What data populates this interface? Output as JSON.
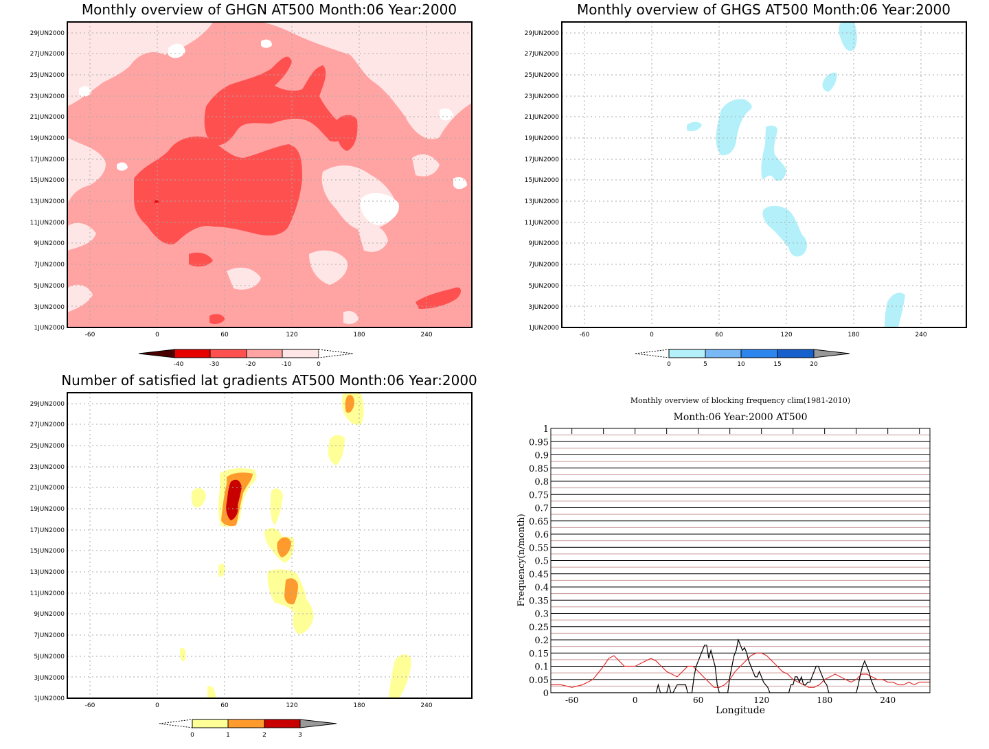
{
  "panels": [
    {
      "title": "Monthly overview of GHGN AT500 Month:06 Year:2000",
      "colorbar_labels": [
        "-40",
        "-30",
        "-20",
        "-10",
        "0"
      ],
      "colorbar_colors": [
        "#4a0000",
        "#e60000",
        "#ff5050",
        "#ffa3a3",
        "#ffe6e6"
      ]
    },
    {
      "title": "Monthly overview of GHGS AT500 Month:06 Year:2000",
      "colorbar_labels": [
        "0",
        "5",
        "10",
        "15",
        "20"
      ],
      "colorbar_colors": [
        "#b4f0fa",
        "#78b8f5",
        "#2c86ee",
        "#1560cc"
      ]
    },
    {
      "title": "Number of satisfied lat gradients AT500 Month:06 Year:2000",
      "colorbar_labels": [
        "0",
        "1",
        "2",
        "3"
      ],
      "colorbar_colors": [
        "#ffff98",
        "#ff9a2c",
        "#c80000"
      ]
    }
  ],
  "map_axes": {
    "x_ticks": [
      "-60",
      "0",
      "60",
      "120",
      "180",
      "240"
    ],
    "y_ticks": [
      "1JUN2000",
      "3JUN2000",
      "5JUN2000",
      "7JUN2000",
      "9JUN2000",
      "11JUN2000",
      "13JUN2000",
      "15JUN2000",
      "17JUN2000",
      "19JUN2000",
      "21JUN2000",
      "23JUN2000",
      "25JUN2000",
      "27JUN2000",
      "29JUN2000"
    ]
  },
  "chart_data": [
    {
      "type": "heatmap",
      "title": "Monthly overview of GHGN AT500 Month:06 Year:2000",
      "x_ticks": [
        -60,
        0,
        60,
        120,
        180,
        240
      ],
      "xlim": [
        -80,
        280
      ],
      "y_ticks": [
        "1JUN2000",
        "3JUN2000",
        "5JUN2000",
        "7JUN2000",
        "9JUN2000",
        "11JUN2000",
        "13JUN2000",
        "15JUN2000",
        "17JUN2000",
        "19JUN2000",
        "21JUN2000",
        "23JUN2000",
        "25JUN2000",
        "27JUN2000",
        "29JUN2000"
      ],
      "levels": [
        -40,
        -30,
        -20,
        -10,
        0
      ],
      "grid": true
    },
    {
      "type": "heatmap",
      "title": "Monthly overview of GHGS AT500 Month:06 Year:2000",
      "x_ticks": [
        -60,
        0,
        60,
        120,
        180,
        240
      ],
      "xlim": [
        -80,
        280
      ],
      "y_ticks": [
        "1JUN2000",
        "3JUN2000",
        "5JUN2000",
        "7JUN2000",
        "9JUN2000",
        "11JUN2000",
        "13JUN2000",
        "15JUN2000",
        "17JUN2000",
        "19JUN2000",
        "21JUN2000",
        "23JUN2000",
        "25JUN2000",
        "27JUN2000",
        "29JUN2000"
      ],
      "levels": [
        0,
        5,
        10,
        15,
        20
      ],
      "grid": true
    },
    {
      "type": "heatmap",
      "title": "Number of satisfied lat gradients AT500 Month:06 Year:2000",
      "x_ticks": [
        -60,
        0,
        60,
        120,
        180,
        240
      ],
      "xlim": [
        -80,
        280
      ],
      "y_ticks": [
        "1JUN2000",
        "3JUN2000",
        "5JUN2000",
        "7JUN2000",
        "9JUN2000",
        "11JUN2000",
        "13JUN2000",
        "15JUN2000",
        "17JUN2000",
        "19JUN2000",
        "21JUN2000",
        "23JUN2000",
        "25JUN2000",
        "27JUN2000",
        "29JUN2000"
      ],
      "levels": [
        0,
        1,
        2,
        3
      ],
      "grid": true
    },
    {
      "type": "line",
      "title": "Monthly overview of blocking frequency clim(1981-2010)",
      "subtitle": "Month:06 Year:2000  AT500",
      "xlabel": "Longitude",
      "ylabel": "Frequency(n/month)",
      "xlim": [
        -80,
        280
      ],
      "ylim": [
        0,
        1
      ],
      "x_ticks": [
        -60,
        0,
        60,
        120,
        180,
        240
      ],
      "y_ticks": [
        "0",
        "0.05",
        "0.1",
        "0.15",
        "0.2",
        "0.25",
        "0.3",
        "0.35",
        "0.4",
        "0.45",
        "0.5",
        "0.55",
        "0.6",
        "0.65",
        "0.7",
        "0.75",
        "0.8",
        "0.85",
        "0.9",
        "0.95",
        "1"
      ],
      "series": [
        {
          "color": "#e03030",
          "x": [
            -80,
            -70,
            -60,
            -50,
            -40,
            -30,
            -25,
            -20,
            -15,
            -10,
            -5,
            0,
            5,
            10,
            15,
            20,
            25,
            30,
            35,
            40,
            45,
            50,
            55,
            60,
            65,
            70,
            75,
            80,
            85,
            90,
            95,
            100,
            105,
            110,
            115,
            120,
            125,
            130,
            135,
            140,
            145,
            150,
            155,
            160,
            165,
            170,
            175,
            180,
            185,
            190,
            195,
            200,
            205,
            210,
            215,
            220,
            225,
            230,
            235,
            240,
            245,
            250,
            255,
            260,
            265,
            270,
            275,
            280
          ],
          "values": [
            0.03,
            0.03,
            0.02,
            0.03,
            0.05,
            0.1,
            0.13,
            0.14,
            0.12,
            0.1,
            0.1,
            0.1,
            0.11,
            0.12,
            0.13,
            0.12,
            0.1,
            0.08,
            0.07,
            0.06,
            0.08,
            0.1,
            0.1,
            0.08,
            0.06,
            0.04,
            0.02,
            0.02,
            0.03,
            0.05,
            0.08,
            0.1,
            0.12,
            0.14,
            0.15,
            0.15,
            0.14,
            0.12,
            0.1,
            0.08,
            0.07,
            0.05,
            0.04,
            0.03,
            0.02,
            0.02,
            0.03,
            0.05,
            0.06,
            0.07,
            0.06,
            0.05,
            0.04,
            0.05,
            0.07,
            0.07,
            0.06,
            0.05,
            0.05,
            0.04,
            0.04,
            0.03,
            0.03,
            0.04,
            0.03,
            0.04,
            0.04,
            0.04
          ]
        },
        {
          "color": "#000000",
          "x": [
            -80,
            20,
            22,
            24,
            26,
            30,
            32,
            34,
            36,
            40,
            42,
            44,
            48,
            50,
            52,
            54,
            56,
            58,
            60,
            62,
            64,
            66,
            68,
            70,
            72,
            74,
            76,
            78,
            80,
            82,
            84,
            86,
            88,
            90,
            92,
            94,
            96,
            98,
            100,
            102,
            104,
            106,
            108,
            110,
            112,
            114,
            116,
            118,
            120,
            122,
            124,
            126,
            128,
            130,
            132,
            134,
            136,
            138,
            140,
            142,
            144,
            146,
            148,
            150,
            152,
            154,
            156,
            158,
            160,
            162,
            164,
            166,
            168,
            170,
            172,
            174,
            176,
            178,
            180,
            182,
            184,
            186,
            188,
            190,
            192,
            194,
            196,
            198,
            200,
            202,
            204,
            206,
            208,
            210,
            212,
            214,
            216,
            218,
            220,
            222,
            224,
            226,
            228,
            230,
            280
          ],
          "values": [
            0,
            0,
            0.03,
            0,
            0,
            0,
            0.03,
            0,
            0,
            0.03,
            0.03,
            0.03,
            0.03,
            0,
            0,
            0,
            0.06,
            0.1,
            0.12,
            0.14,
            0.16,
            0.18,
            0.18,
            0.13,
            0.16,
            0.13,
            0.1,
            0.03,
            0,
            0,
            0,
            0,
            0,
            0.06,
            0.1,
            0.14,
            0.16,
            0.2,
            0.18,
            0.16,
            0.17,
            0.15,
            0.12,
            0.1,
            0.08,
            0.06,
            0.06,
            0.08,
            0.06,
            0.04,
            0.03,
            0.02,
            0,
            0,
            0,
            0,
            0,
            0,
            0,
            0,
            0,
            0,
            0.03,
            0.03,
            0.06,
            0.06,
            0.04,
            0.06,
            0.03,
            0.03,
            0.04,
            0.04,
            0.06,
            0.08,
            0.1,
            0.1,
            0.08,
            0.06,
            0.04,
            0.03,
            0,
            0,
            0,
            0,
            0,
            0,
            0,
            0,
            0,
            0,
            0,
            0,
            0,
            0,
            0.03,
            0.07,
            0.1,
            0.12,
            0.1,
            0.08,
            0.05,
            0.03,
            0.01,
            0,
            0
          ]
        }
      ]
    }
  ]
}
